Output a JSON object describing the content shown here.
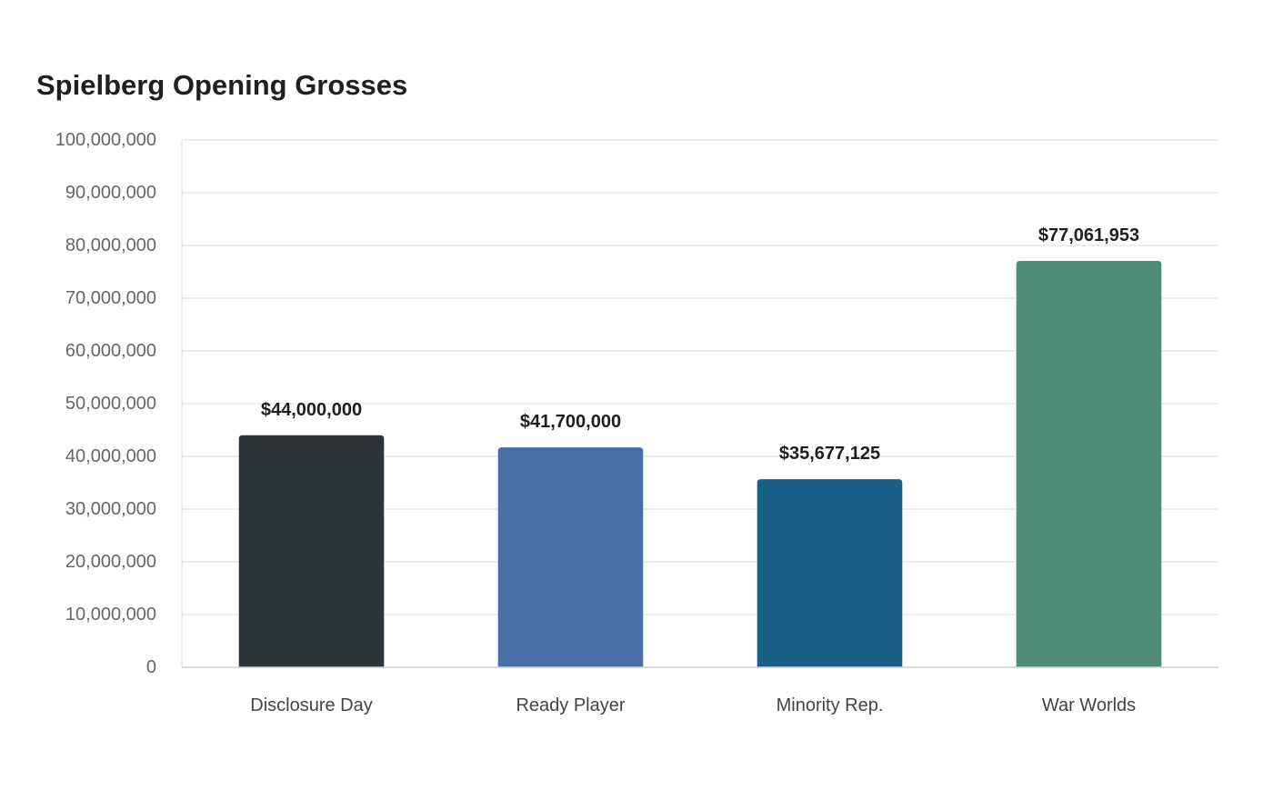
{
  "chart_data": {
    "type": "bar",
    "title": "Spielberg Opening Grosses",
    "xlabel": "",
    "ylabel": "",
    "categories": [
      "Disclosure Day",
      "Ready Player",
      "Minority Rep.",
      "War Worlds"
    ],
    "values": [
      44000000,
      41700000,
      35677125,
      77061953
    ],
    "value_labels": [
      "$44,000,000",
      "$41,700,000",
      "$35,677,125",
      "$77,061,953"
    ],
    "colors": [
      "#2e3539",
      "#4a6fa5",
      "#186086",
      "#4e8c7a"
    ],
    "ylim": [
      0,
      100000000
    ],
    "yticks": [
      0,
      10000000,
      20000000,
      30000000,
      40000000,
      50000000,
      60000000,
      70000000,
      80000000,
      90000000,
      100000000
    ],
    "ytick_labels": [
      "0",
      "10,000,000",
      "20,000,000",
      "30,000,000",
      "40,000,000",
      "50,000,000",
      "60,000,000",
      "70,000,000",
      "80,000,000",
      "90,000,000",
      "100,000,000"
    ],
    "grid": true,
    "legend": "none"
  }
}
